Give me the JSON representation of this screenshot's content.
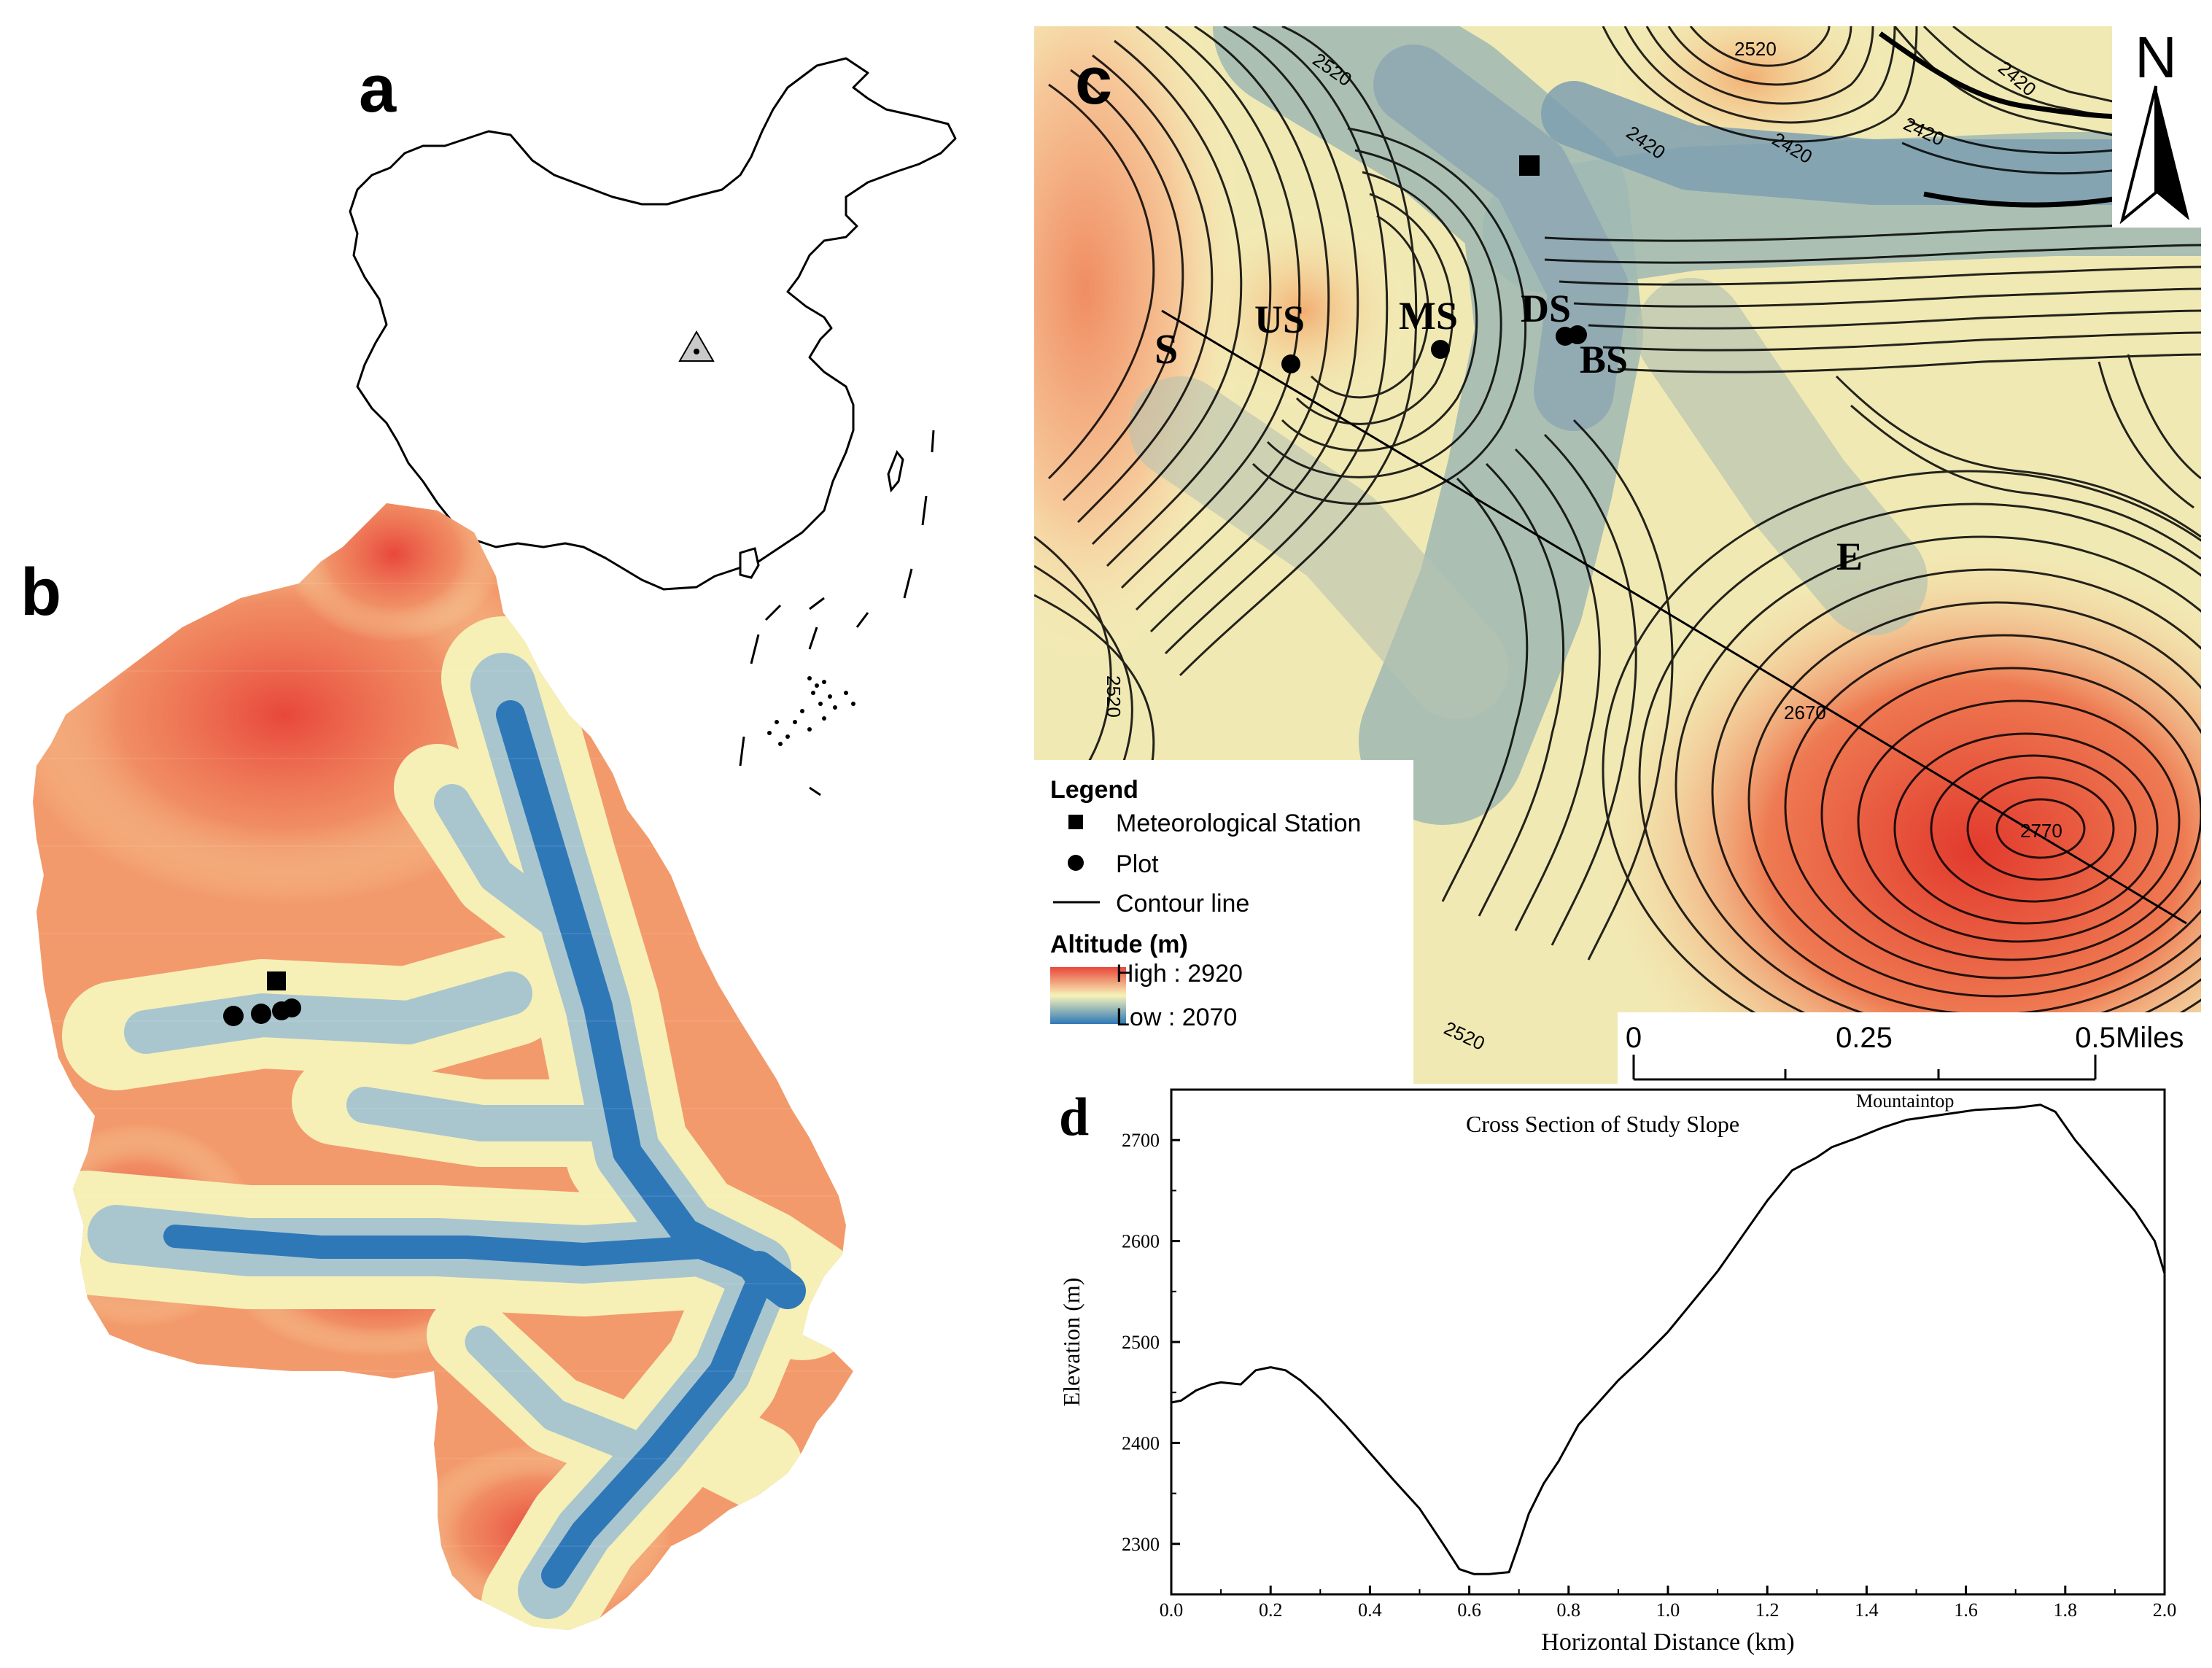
{
  "panels": {
    "a": {
      "letter": "a"
    },
    "b": {
      "letter": "b"
    },
    "c": {
      "letter": "c",
      "north": "N",
      "contour_labels": [
        "2520",
        "2420",
        "2420",
        "2420",
        "2420",
        "2520",
        "2670",
        "2770",
        "2520",
        "2520"
      ],
      "points": {
        "S": "S",
        "US": "US",
        "MS": "MS",
        "DS": "DS",
        "BS": "BS",
        "E": "E"
      },
      "legend": {
        "title": "Legend",
        "station": "Meteorological Station",
        "plot": "Plot",
        "contour": "Contour line",
        "altitude_title": "Altitude (m)",
        "high": "High : 2920",
        "low": "Low : 2070"
      },
      "scalebar": {
        "labels": [
          "0",
          "0.25",
          "0.5"
        ],
        "unit": "Miles"
      }
    },
    "d": {
      "letter": "d"
    }
  },
  "colors": {
    "high": "#e8473a",
    "mid": "#f7f3b8",
    "low": "#2f78b8"
  },
  "chart_data": {
    "type": "line",
    "title": "Cross Section of Study Slope",
    "annotation": "Mountaintop",
    "xlabel": "Horizontal Distance (km)",
    "ylabel": "Elevation (m)",
    "xlim": [
      0,
      2.0
    ],
    "ylim": [
      2250,
      2750
    ],
    "xticks": [
      "0.0",
      "0.2",
      "0.4",
      "0.6",
      "0.8",
      "1.0",
      "1.2",
      "1.4",
      "1.6",
      "1.8",
      "2.0"
    ],
    "yticks": [
      "2300",
      "2400",
      "2500",
      "2600",
      "2700"
    ],
    "series": [
      {
        "x": [
          0,
          0.02,
          0.05,
          0.08,
          0.1,
          0.14,
          0.17,
          0.2,
          0.23,
          0.26,
          0.3,
          0.35,
          0.4,
          0.45,
          0.5,
          0.55,
          0.58,
          0.61,
          0.64,
          0.66,
          0.68,
          0.7,
          0.72,
          0.75,
          0.78,
          0.82,
          0.86,
          0.9,
          0.95,
          1.0,
          1.05,
          1.1,
          1.15,
          1.2,
          1.25,
          1.3,
          1.33,
          1.38,
          1.43,
          1.48,
          1.55,
          1.62,
          1.7,
          1.75,
          1.78,
          1.82,
          1.88,
          1.94,
          1.98,
          2.0
        ],
        "y": [
          2440,
          2442,
          2452,
          2458,
          2460,
          2458,
          2472,
          2475,
          2472,
          2462,
          2444,
          2418,
          2390,
          2362,
          2335,
          2298,
          2275,
          2270,
          2270,
          2271,
          2272,
          2300,
          2330,
          2360,
          2382,
          2418,
          2440,
          2462,
          2485,
          2510,
          2540,
          2570,
          2605,
          2640,
          2670,
          2683,
          2693,
          2702,
          2712,
          2720,
          2725,
          2730,
          2732,
          2735,
          2728,
          2700,
          2665,
          2630,
          2600,
          2568
        ]
      }
    ]
  }
}
